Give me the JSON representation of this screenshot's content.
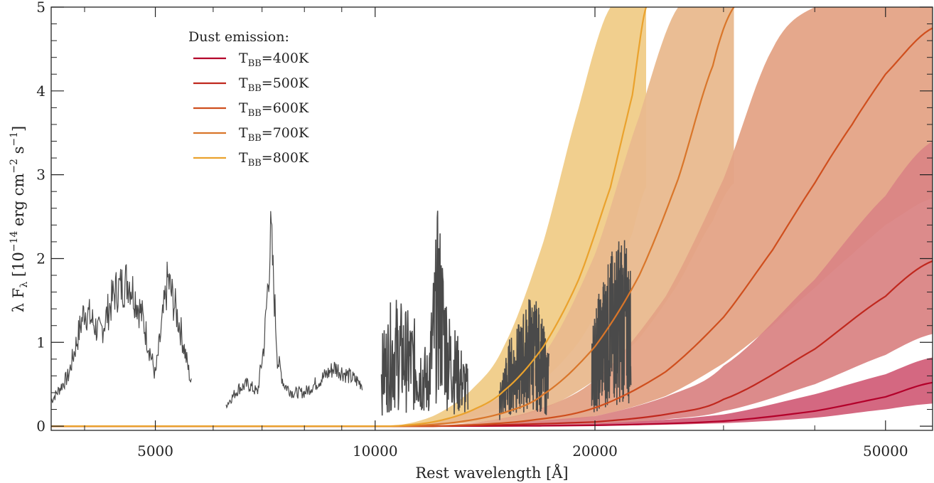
{
  "chart_data": {
    "type": "line",
    "xlabel": "Rest wavelength [Å]",
    "ylabel_parts": {
      "prefix": "λ F",
      "sub": "λ",
      "mid1": " [10",
      "exp1": "−14",
      "mid2": " erg cm",
      "exp2": "−2",
      "mid3": " s",
      "exp3": "−1",
      "suffix": "]"
    },
    "x_scale": "log",
    "xlim": [
      3600,
      58000
    ],
    "ylim": [
      -0.05,
      5.0
    ],
    "x_ticks": [
      5000,
      10000,
      20000,
      50000
    ],
    "x_tick_labels": [
      "5000",
      "10000",
      "20000",
      "50000"
    ],
    "y_ticks": [
      0,
      1,
      2,
      3,
      4,
      5
    ],
    "y_tick_labels": [
      "0",
      "1",
      "2",
      "3",
      "4",
      "5"
    ],
    "legend": {
      "title": "Dust emission:",
      "placement": "top-left",
      "entries": [
        {
          "prefix": "T",
          "sub": "BB",
          "suffix": "=400K",
          "color": "#b3002a"
        },
        {
          "prefix": "T",
          "sub": "BB",
          "suffix": "=500K",
          "color": "#c0281e"
        },
        {
          "prefix": "T",
          "sub": "BB",
          "suffix": "=600K",
          "color": "#cf4f1e"
        },
        {
          "prefix": "T",
          "sub": "BB",
          "suffix": "=700K",
          "color": "#d9762a"
        },
        {
          "prefix": "T",
          "sub": "BB",
          "suffix": "=800K",
          "color": "#eaa22d"
        }
      ]
    },
    "dust_series": [
      {
        "temperature_K": 400,
        "line_color": "#b3002a",
        "band_color": "#d2607a",
        "x": [
          10000,
          20000,
          30000,
          40000,
          50000,
          58000
        ],
        "y": [
          0.0,
          0.01,
          0.06,
          0.18,
          0.35,
          0.52
        ],
        "y_low": [
          0.0,
          0.005,
          0.035,
          0.1,
          0.2,
          0.27
        ],
        "y_high": [
          0.0,
          0.03,
          0.14,
          0.38,
          0.62,
          0.82
        ]
      },
      {
        "temperature_K": 500,
        "line_color": "#c0281e",
        "band_color": "#da8585",
        "x": [
          12000,
          20000,
          25000,
          30000,
          40000,
          50000,
          58000
        ],
        "y": [
          0.0,
          0.05,
          0.14,
          0.32,
          0.92,
          1.55,
          1.97
        ],
        "y_low": [
          0.0,
          0.02,
          0.08,
          0.18,
          0.5,
          0.85,
          1.1
        ],
        "y_high": [
          0.0,
          0.12,
          0.35,
          0.72,
          1.75,
          2.75,
          3.4
        ]
      },
      {
        "temperature_K": 600,
        "line_color": "#cf4f1e",
        "band_color": "#e4a386",
        "x": [
          12000,
          16000,
          20000,
          25000,
          30000,
          35000,
          40000,
          45000,
          50000,
          58000
        ],
        "y": [
          0.0,
          0.06,
          0.22,
          0.65,
          1.3,
          2.1,
          2.9,
          3.6,
          4.2,
          4.75
        ],
        "y_low": [
          0.0,
          0.03,
          0.12,
          0.36,
          0.75,
          1.2,
          1.65,
          2.05,
          2.4,
          2.72
        ],
        "y_high": [
          0.0,
          0.15,
          0.55,
          1.55,
          2.95,
          4.5,
          5.0,
          5.0,
          5.0,
          5.0
        ]
      },
      {
        "temperature_K": 700,
        "line_color": "#d9762a",
        "band_color": "#e9b98e",
        "x": [
          11000,
          13000,
          15000,
          17000,
          20000,
          23000,
          26000,
          29000,
          31000
        ],
        "y": [
          0.0,
          0.05,
          0.16,
          0.38,
          0.95,
          1.8,
          2.95,
          4.3,
          5.0
        ],
        "y_low": [
          0.0,
          0.03,
          0.09,
          0.21,
          0.55,
          1.05,
          1.7,
          2.45,
          2.9
        ],
        "y_high": [
          0.0,
          0.12,
          0.38,
          0.85,
          2.05,
          3.7,
          5.0,
          5.0,
          5.0
        ]
      },
      {
        "temperature_K": 800,
        "line_color": "#eaa22d",
        "band_color": "#f0cc88",
        "x": [
          10500,
          12000,
          13500,
          15000,
          17000,
          19000,
          21000,
          22500,
          23500
        ],
        "y": [
          0.0,
          0.05,
          0.18,
          0.42,
          0.95,
          1.75,
          2.85,
          3.95,
          5.0
        ],
        "y_low": [
          0.0,
          0.02,
          0.1,
          0.24,
          0.55,
          1.0,
          1.65,
          2.3,
          2.85
        ],
        "y_high": [
          0.0,
          0.12,
          0.42,
          0.95,
          2.2,
          3.8,
          5.0,
          5.0,
          5.0
        ]
      }
    ],
    "observed_spectrum": {
      "color": "#4a4a4a",
      "segments": [
        {
          "x": [
            3600,
            3800,
            4000,
            4200,
            4400,
            4600,
            4800,
            5000,
            5200,
            5400,
            5600
          ],
          "y": [
            0.3,
            0.6,
            1.4,
            1.1,
            1.6,
            1.75,
            1.3,
            0.6,
            1.75,
            1.2,
            0.5
          ]
        },
        {
          "x": [
            6250,
            6500,
            6700,
            6900,
            7050,
            7200,
            7350,
            7500,
            7700,
            8000,
            8400,
            8800,
            9200,
            9600
          ],
          "y": [
            0.25,
            0.45,
            0.5,
            0.4,
            1.0,
            2.3,
            0.8,
            0.5,
            0.4,
            0.4,
            0.55,
            0.7,
            0.6,
            0.5
          ]
        },
        {
          "x": [
            10200,
            10600,
            11000,
            11400,
            11800,
            12200,
            12600,
            13000,
            13400
          ],
          "y": [
            0.6,
            0.9,
            0.8,
            0.7,
            0.5,
            1.5,
            0.8,
            0.6,
            0.4
          ]
        },
        {
          "x": [
            14800,
            15300,
            15800,
            16300,
            16800,
            17300
          ],
          "y": [
            0.3,
            0.6,
            0.7,
            0.9,
            0.8,
            0.5
          ]
        },
        {
          "x": [
            19800,
            20500,
            21200,
            21800,
            22400
          ],
          "y": [
            0.7,
            1.0,
            1.2,
            1.3,
            1.1
          ]
        }
      ]
    }
  }
}
